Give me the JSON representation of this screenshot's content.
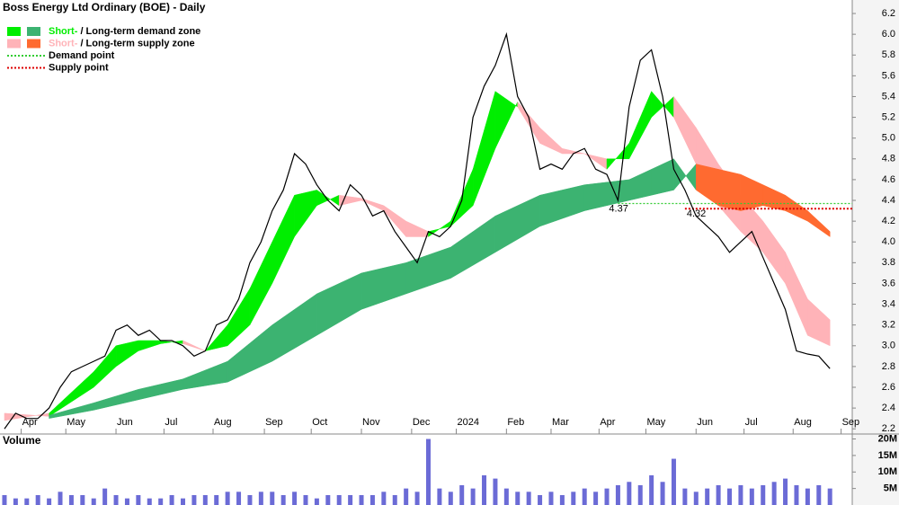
{
  "chart_data": [
    {
      "type": "line",
      "title": "Boss Energy Ltd Ordinary (BOE) - Daily",
      "color": "#000000",
      "x": [
        0,
        1,
        2,
        3,
        4,
        5,
        6,
        7,
        8,
        9,
        10,
        11,
        12,
        13,
        14,
        15,
        16,
        17,
        18,
        19,
        20,
        21,
        22,
        23,
        24,
        25,
        26,
        27,
        28,
        29,
        30,
        31,
        32,
        33,
        34,
        35,
        36,
        37,
        38,
        39,
        40,
        41,
        42,
        43,
        44,
        45,
        46,
        47,
        48,
        49,
        50,
        51,
        52,
        53,
        54,
        55,
        56,
        57,
        58,
        59,
        60,
        61,
        62,
        63,
        64,
        65,
        66,
        67,
        68,
        69,
        70,
        71,
        72,
        73,
        74
      ],
      "values": [
        2.2,
        2.35,
        2.3,
        2.3,
        2.4,
        2.6,
        2.75,
        2.8,
        2.85,
        2.9,
        3.15,
        3.2,
        3.1,
        3.15,
        3.05,
        3.05,
        3.0,
        2.9,
        2.95,
        3.2,
        3.25,
        3.45,
        3.8,
        4.0,
        4.3,
        4.5,
        4.85,
        4.75,
        4.55,
        4.4,
        4.3,
        4.55,
        4.45,
        4.25,
        4.3,
        4.1,
        3.95,
        3.8,
        4.1,
        4.05,
        4.15,
        4.4,
        5.2,
        5.5,
        5.7,
        6.0,
        5.4,
        5.2,
        4.7,
        4.75,
        4.7,
        4.85,
        4.9,
        4.7,
        4.65,
        4.4,
        5.3,
        5.75,
        5.85,
        5.4,
        4.7,
        4.5,
        4.25,
        4.15,
        4.05,
        3.9,
        4.0,
        4.1,
        3.85,
        3.6,
        3.35,
        2.95,
        2.92,
        2.9,
        2.78
      ],
      "bands": [
        {
          "x": [
            0,
            4,
            8,
            10,
            12,
            14,
            16,
            18,
            20,
            22,
            24,
            26,
            28,
            30,
            32,
            34,
            36,
            38,
            40,
            42,
            44,
            46,
            48,
            50,
            52,
            54,
            56,
            58,
            60,
            62,
            64,
            66,
            68,
            70,
            72,
            74
          ],
          "fast": [
            2.28,
            2.35,
            2.75,
            3.0,
            3.05,
            3.05,
            3.02,
            2.95,
            3.2,
            3.55,
            4.0,
            4.45,
            4.5,
            4.35,
            4.4,
            4.3,
            4.05,
            4.05,
            4.2,
            4.7,
            5.45,
            5.3,
            4.95,
            4.85,
            4.85,
            4.7,
            4.95,
            5.45,
            5.2,
            4.75,
            4.35,
            4.1,
            3.9,
            3.6,
            3.1,
            3.0
          ],
          "slow": [
            2.35,
            2.32,
            2.6,
            2.8,
            2.95,
            3.02,
            3.05,
            2.95,
            3.0,
            3.2,
            3.6,
            4.05,
            4.35,
            4.45,
            4.42,
            4.35,
            4.2,
            4.1,
            4.15,
            4.35,
            4.9,
            5.35,
            5.1,
            4.9,
            4.85,
            4.8,
            4.8,
            5.2,
            5.4,
            5.1,
            4.75,
            4.45,
            4.2,
            3.9,
            3.45,
            3.25
          ]
        },
        {
          "x": [
            4,
            8,
            12,
            16,
            20,
            24,
            28,
            32,
            36,
            40,
            44,
            48,
            52,
            56,
            58,
            60,
            62,
            64,
            66,
            68,
            70,
            72,
            74
          ],
          "fast": [
            2.33,
            2.45,
            2.58,
            2.68,
            2.85,
            3.2,
            3.5,
            3.7,
            3.8,
            3.95,
            4.25,
            4.45,
            4.55,
            4.6,
            4.7,
            4.8,
            4.5,
            4.35,
            4.3,
            4.35,
            4.3,
            4.2,
            4.05
          ],
          "slow": [
            2.3,
            2.38,
            2.48,
            2.58,
            2.65,
            2.85,
            3.1,
            3.35,
            3.5,
            3.65,
            3.9,
            4.15,
            4.3,
            4.4,
            4.45,
            4.5,
            4.75,
            4.7,
            4.65,
            4.55,
            4.45,
            4.3,
            4.1
          ]
        }
      ],
      "legend": [
        {
          "label": "Short-",
          "text": " / Long-term demand zone",
          "colors": [
            "#00ee00",
            "#3cb371"
          ]
        },
        {
          "label": "Short-",
          "text": " / Long-term supply zone",
          "colors": [
            "#ffb3b8",
            "#ff6a30"
          ]
        },
        {
          "text": "Demand point",
          "color": "#33cc33"
        },
        {
          "text": "Supply point",
          "color": "#dd0000"
        }
      ],
      "demand_point": {
        "value": 4.37,
        "x": 55
      },
      "supply_point": {
        "value": 4.32,
        "x": 61
      },
      "xlim": [
        -0.4,
        76
      ],
      "xticks": [
        {
          "value": 1.5,
          "label": "Apr"
        },
        {
          "value": 5.5,
          "label": "May"
        },
        {
          "value": 10,
          "label": "Jun"
        },
        {
          "value": 14.3,
          "label": "Jul"
        },
        {
          "value": 18.7,
          "label": "Aug"
        },
        {
          "value": 23.3,
          "label": "Sep"
        },
        {
          "value": 27.5,
          "label": "Oct"
        },
        {
          "value": 32,
          "label": "Nov"
        },
        {
          "value": 36.5,
          "label": "Dec"
        },
        {
          "value": 40.5,
          "label": "2024"
        },
        {
          "value": 45,
          "label": "Feb"
        },
        {
          "value": 49,
          "label": "Mar"
        },
        {
          "value": 53.3,
          "label": "Apr"
        },
        {
          "value": 57.5,
          "label": "May"
        },
        {
          "value": 62,
          "label": "Jun"
        },
        {
          "value": 66.3,
          "label": "Jul"
        },
        {
          "value": 70.7,
          "label": "Aug"
        },
        {
          "value": 75,
          "label": "Sep"
        }
      ],
      "ylim": [
        2.15,
        6.33
      ],
      "yticks": [
        2.2,
        2.4,
        2.6,
        2.8,
        {
          "value": 3,
          "label": "3.0"
        },
        3.2,
        3.4,
        3.6,
        3.8,
        {
          "value": 4,
          "label": "4.0"
        },
        4.2,
        4.4,
        4.6,
        4.8,
        {
          "value": 5,
          "label": "5.0"
        },
        5.2,
        5.4,
        5.6,
        5.8,
        {
          "value": 6,
          "label": "6.0"
        },
        6.2
      ]
    },
    {
      "type": "bar",
      "title": "Volume",
      "color": "#6b6bd6",
      "x": [
        0,
        1,
        2,
        3,
        4,
        5,
        6,
        7,
        8,
        9,
        10,
        11,
        12,
        13,
        14,
        15,
        16,
        17,
        18,
        19,
        20,
        21,
        22,
        23,
        24,
        25,
        26,
        27,
        28,
        29,
        30,
        31,
        32,
        33,
        34,
        35,
        36,
        37,
        38,
        39,
        40,
        41,
        42,
        43,
        44,
        45,
        46,
        47,
        48,
        49,
        50,
        51,
        52,
        53,
        54,
        55,
        56,
        57,
        58,
        59,
        60,
        61,
        62,
        63,
        64,
        65,
        66,
        67,
        68,
        69,
        70,
        71,
        72,
        73,
        74
      ],
      "values": [
        3,
        2,
        2,
        3,
        2,
        4,
        3,
        3,
        2,
        5,
        3,
        2,
        3,
        2,
        2,
        3,
        2,
        3,
        3,
        3,
        4,
        4,
        3,
        4,
        4,
        3,
        4,
        3,
        2,
        3,
        3,
        3,
        3,
        3,
        4,
        3,
        5,
        4,
        20,
        5,
        4,
        6,
        5,
        9,
        8,
        5,
        4,
        4,
        3,
        4,
        3,
        4,
        5,
        4,
        5,
        6,
        7,
        6,
        9,
        7,
        14,
        5,
        4,
        5,
        6,
        5,
        6,
        5,
        6,
        7,
        8,
        6,
        5,
        6,
        5
      ],
      "xlim": [
        -0.4,
        76
      ],
      "ylim": [
        0,
        21.5
      ],
      "yticks": [
        {
          "value": 5,
          "label": "5M"
        },
        {
          "value": 10,
          "label": "10M"
        },
        {
          "value": 15,
          "label": "15M"
        },
        {
          "value": 20,
          "label": "20M"
        }
      ]
    }
  ]
}
